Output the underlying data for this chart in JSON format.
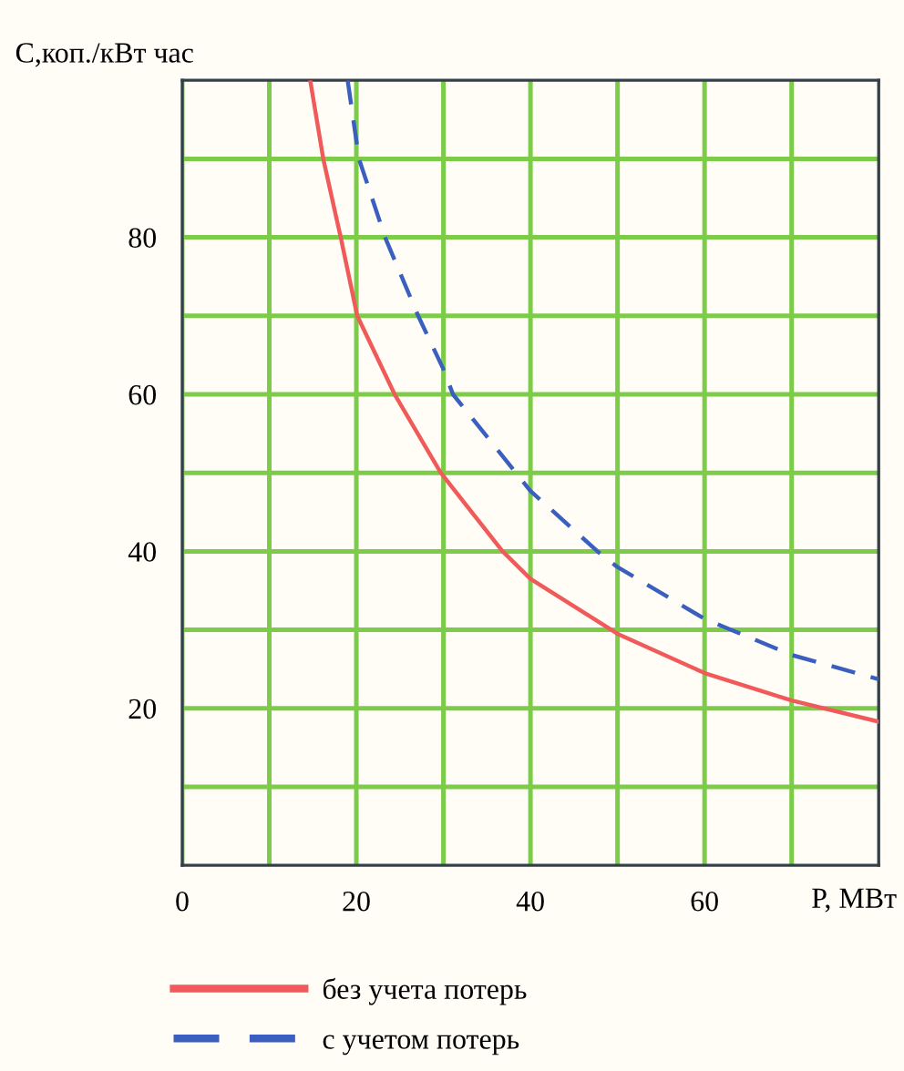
{
  "chart_data": {
    "type": "line",
    "xlabel": "P, МВт",
    "ylabel": "С,коп./кВт час",
    "xlim": [
      0,
      80
    ],
    "ylim": [
      0,
      100
    ],
    "xticks": [
      0,
      {
        "value": 10,
        "label": null
      },
      20,
      {
        "value": 30,
        "label": null
      },
      40,
      {
        "value": 50,
        "label": null
      },
      60,
      {
        "value": 70,
        "label": null
      }
    ],
    "yticks": [
      {
        "value": 10,
        "label": null
      },
      20,
      {
        "value": 30,
        "label": null
      },
      40,
      {
        "value": 50,
        "label": null
      },
      60,
      {
        "value": 70,
        "label": null
      },
      80,
      {
        "value": 90,
        "label": null
      }
    ],
    "grid": true,
    "legend": "bottom",
    "marker": "none",
    "series": [
      {
        "name": "без учета потерь",
        "color": "#f05a5a",
        "line_style": "solid",
        "x": [
          14.7,
          16.2,
          18.2,
          20.1,
          24.4,
          29.7,
          36.8,
          40,
          50,
          60,
          70,
          80
        ],
        "values": [
          100,
          90,
          80,
          70,
          60,
          50,
          40,
          36.5,
          29.5,
          24.5,
          21,
          18.3
        ]
      },
      {
        "name": "с учетом потерь",
        "color": "#3a5fc0",
        "line_style": "dashed",
        "x": [
          19,
          20.3,
          23.3,
          27.1,
          30,
          31.1,
          40,
          47.7,
          50,
          60,
          70,
          80
        ],
        "values": [
          100,
          90,
          80,
          70,
          63.2,
          60,
          47.7,
          40,
          38,
          31.4,
          26.8,
          23.7
        ]
      }
    ]
  }
}
